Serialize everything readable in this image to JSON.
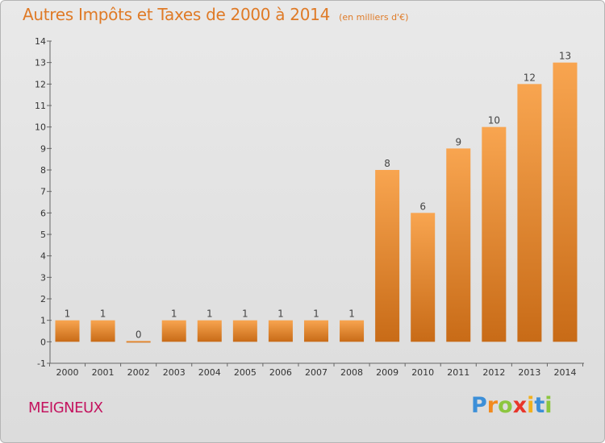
{
  "title": "Autres Impôts et Taxes de 2000 à 2014",
  "subtitle": "(en milliers d'€)",
  "commune": "MEIGNEUX",
  "brand": {
    "letters": [
      "P",
      "r",
      "o",
      "x",
      "i",
      "t",
      "i"
    ],
    "colors": [
      "#3c8fd8",
      "#f28a1e",
      "#8cc63f",
      "#e8352a",
      "#f2b01e",
      "#3c8fd8",
      "#8cc63f"
    ]
  },
  "colors": {
    "bar_light": "#f8a550",
    "bar_dark": "#c86b17",
    "title": "#df7a26",
    "commune": "#c4145f"
  },
  "chart_data": {
    "type": "bar",
    "title": "Autres Impôts et Taxes de 2000 à 2014",
    "subtitle": "(en milliers d'€)",
    "xlabel": "",
    "ylabel": "",
    "categories": [
      "2000",
      "2001",
      "2002",
      "2003",
      "2004",
      "2005",
      "2006",
      "2007",
      "2008",
      "2009",
      "2010",
      "2011",
      "2012",
      "2013",
      "2014"
    ],
    "values": [
      1,
      1,
      0,
      1,
      1,
      1,
      1,
      1,
      1,
      8,
      6,
      9,
      10,
      12,
      13
    ],
    "value_labels": [
      "1",
      "1",
      "0",
      "1",
      "1",
      "1",
      "1",
      "1",
      "1",
      "8",
      "6",
      "9",
      "10",
      "12",
      "13"
    ],
    "ylim": [
      -1,
      14
    ],
    "yticks": [
      -1,
      0,
      1,
      2,
      3,
      4,
      5,
      6,
      7,
      8,
      9,
      10,
      11,
      12,
      13,
      14
    ],
    "ytick_labels": [
      "-1",
      "0",
      "1",
      "2",
      "3",
      "4",
      "5",
      "6",
      "7",
      "8",
      "9",
      "10",
      "11",
      "12",
      "13",
      "14"
    ],
    "grid": false,
    "legend": "none"
  }
}
